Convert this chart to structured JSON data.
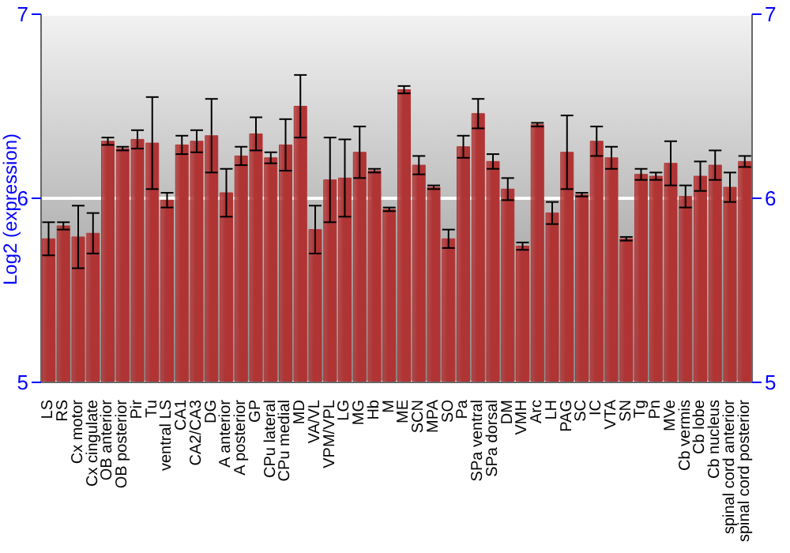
{
  "chart_data": {
    "type": "bar",
    "ylabel": "Log2 (expression)",
    "categories": [
      "LS",
      "RS",
      "Cx motor",
      "Cx cingulate",
      "OB anterior",
      "OB posterior",
      "Pir",
      "Tu",
      "ventral LS",
      "CA1",
      "CA2/CA3",
      "DG",
      "A anterior",
      "A posterior",
      "GP",
      "CPu lateral",
      "CPu medial",
      "MD",
      "VA/VL",
      "VPM/VPL",
      "LG",
      "MG",
      "Hb",
      "M",
      "ME",
      "SCN",
      "MPA",
      "SO",
      "Pa",
      "SPa ventral",
      "SPa dorsal",
      "DM",
      "VMH",
      "Arc",
      "LH",
      "PAG",
      "SC",
      "IC",
      "VTA",
      "SN",
      "Tg",
      "Pn",
      "MVe",
      "Cb vermis",
      "Cb lobe",
      "Cb nucleus",
      "spinal cord anterior",
      "spinal cord posterior"
    ],
    "values": [
      5.78,
      5.85,
      5.79,
      5.81,
      6.31,
      6.27,
      6.32,
      6.3,
      5.99,
      6.29,
      6.31,
      6.34,
      6.03,
      6.23,
      6.35,
      6.22,
      6.29,
      6.5,
      5.83,
      6.1,
      6.11,
      6.25,
      6.15,
      5.94,
      6.59,
      6.18,
      6.06,
      5.78,
      6.28,
      6.46,
      6.2,
      6.05,
      5.74,
      6.4,
      5.92,
      6.25,
      6.02,
      6.31,
      6.22,
      5.78,
      6.13,
      6.12,
      6.19,
      6.01,
      6.12,
      6.18,
      6.06,
      6.2
    ],
    "errors": [
      0.09,
      0.02,
      0.17,
      0.11,
      0.02,
      0.01,
      0.05,
      0.25,
      0.04,
      0.05,
      0.06,
      0.2,
      0.13,
      0.05,
      0.09,
      0.03,
      0.14,
      0.17,
      0.13,
      0.23,
      0.21,
      0.14,
      0.01,
      0.01,
      0.02,
      0.05,
      0.01,
      0.05,
      0.06,
      0.08,
      0.04,
      0.06,
      0.02,
      0.01,
      0.06,
      0.2,
      0.01,
      0.08,
      0.06,
      0.01,
      0.03,
      0.02,
      0.12,
      0.06,
      0.08,
      0.08,
      0.08,
      0.03
    ],
    "color": "#b03434",
    "ylim": [
      5,
      7
    ],
    "yticks": [
      5,
      6,
      7
    ],
    "y2lim": [
      5,
      7
    ],
    "y2ticks": [
      5,
      6,
      7
    ],
    "grid": "y"
  }
}
